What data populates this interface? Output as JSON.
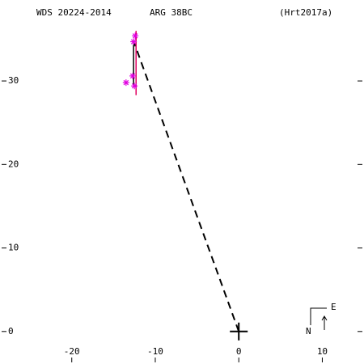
{
  "chart_data": {
    "type": "scatter",
    "title": "WDS 20224-2014",
    "subtitle": "ARG  38BC",
    "reference": "(Hrt2017a)",
    "xlim": [
      -28.4,
      14.8
    ],
    "ylim": [
      -3.7,
      39.5
    ],
    "xticks": [
      -20,
      -10,
      0,
      10
    ],
    "yticks": [
      0,
      10,
      20,
      30
    ],
    "primary": {
      "x": 0,
      "y": 0
    },
    "companion": {
      "x": -12.5,
      "y": 34.5
    },
    "series": [
      {
        "color": "#e000e0",
        "x": [
          -13.5,
          -12.5,
          -12.7,
          -12.6,
          -12.4
        ],
        "y": [
          29.8,
          29.4,
          30.6,
          34.7,
          35.4
        ]
      }
    ],
    "error_bar": {
      "color": "#e00060",
      "x": -12.3,
      "y": 32.15,
      "error": 3.85
    },
    "residual": {
      "x": [
        -12.6,
        -12.6
      ],
      "y": [
        29.5,
        34.5
      ]
    },
    "compass": {
      "north": "N",
      "east": "E"
    }
  }
}
